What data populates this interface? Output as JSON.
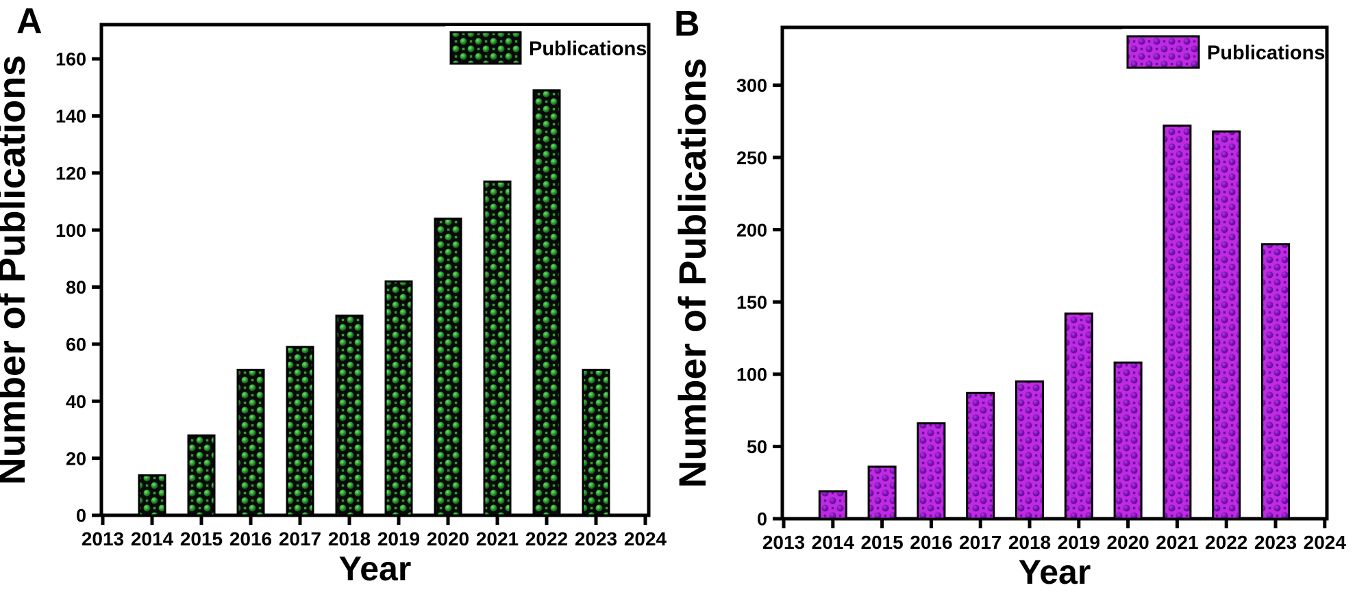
{
  "figure": {
    "panels": [
      {
        "panel_label": "A",
        "legend_label": "Publications",
        "xlabel": "Year",
        "ylabel": "Number of Publications"
      },
      {
        "panel_label": "B",
        "legend_label": "Publications",
        "xlabel": "Year",
        "ylabel": "Number of Publications"
      }
    ]
  },
  "chart_data": [
    {
      "type": "bar",
      "panel": "A",
      "title": "",
      "xlabel": "Year",
      "ylabel": "Number of Publications",
      "legend_entries": [
        "Publications"
      ],
      "legend_position": "top-right",
      "grid": false,
      "categories": [
        2014,
        2015,
        2016,
        2017,
        2018,
        2019,
        2020,
        2021,
        2022,
        2023
      ],
      "values": [
        14,
        28,
        51,
        59,
        70,
        82,
        104,
        117,
        149,
        51
      ],
      "x_ticks": [
        2013,
        2014,
        2015,
        2016,
        2017,
        2018,
        2019,
        2020,
        2021,
        2022,
        2023,
        2024
      ],
      "y_ticks": [
        0,
        20,
        40,
        60,
        80,
        100,
        120,
        140,
        160
      ],
      "xlim": [
        2013,
        2024
      ],
      "ylim": [
        0,
        172
      ],
      "bar_colors": {
        "base": "#0a0a0a",
        "sphere_hi": "#71e871",
        "sphere_mid": "#2f9e33",
        "sphere_lo": "#0e4a11",
        "square": "#2f9e33",
        "border": "#000000"
      }
    },
    {
      "type": "bar",
      "panel": "B",
      "title": "",
      "xlabel": "Year",
      "ylabel": "Number of Publications",
      "legend_entries": [
        "Publications"
      ],
      "legend_position": "top-right",
      "grid": false,
      "categories": [
        2014,
        2015,
        2016,
        2017,
        2018,
        2019,
        2020,
        2021,
        2022,
        2023
      ],
      "values": [
        19,
        36,
        66,
        87,
        95,
        142,
        108,
        272,
        268,
        190
      ],
      "x_ticks": [
        2013,
        2014,
        2015,
        2016,
        2017,
        2018,
        2019,
        2020,
        2021,
        2022,
        2023,
        2024
      ],
      "y_ticks": [
        0,
        50,
        100,
        150,
        200,
        250,
        300
      ],
      "xlim": [
        2013,
        2024
      ],
      "ylim": [
        0,
        340
      ],
      "bar_colors": {
        "base": "#be2be2",
        "sphere_hi": "#a93fd9",
        "sphere_mid": "#8512bc",
        "sphere_lo": "#5e0787",
        "square": "#6f0b9e",
        "border": "#000000"
      }
    }
  ]
}
